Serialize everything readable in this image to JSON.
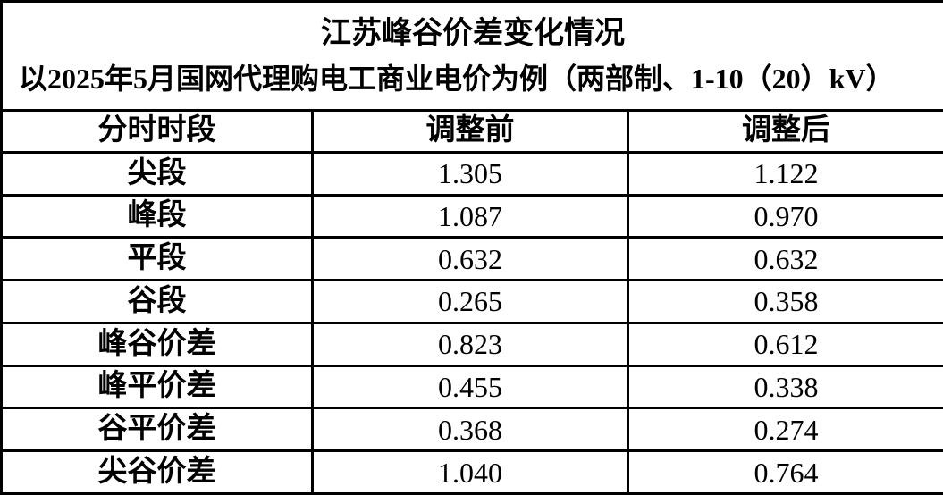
{
  "chart_data": {
    "type": "table",
    "title": "江苏峰谷价差变化情况",
    "subtitle": "以2025年5月国网代理购电工商业电价为例（两部制、1-10（20）kV）",
    "columns": [
      "分时时段",
      "调整前",
      "调整后"
    ],
    "rows": [
      [
        "尖段",
        "1.305",
        "1.122"
      ],
      [
        "峰段",
        "1.087",
        "0.970"
      ],
      [
        "平段",
        "0.632",
        "0.632"
      ],
      [
        "谷段",
        "0.265",
        "0.358"
      ],
      [
        "峰谷价差",
        "0.823",
        "0.612"
      ],
      [
        "峰平价差",
        "0.455",
        "0.338"
      ],
      [
        "谷平价差",
        "0.368",
        "0.274"
      ],
      [
        "尖谷价差",
        "1.040",
        "0.764"
      ]
    ],
    "layout": {
      "grid": "on",
      "header_style": "bold",
      "title_position": "top-center",
      "subtitle_position": "top-left"
    }
  },
  "colors": {
    "border": "#000000",
    "text": "#000000",
    "background": "#ffffff"
  }
}
